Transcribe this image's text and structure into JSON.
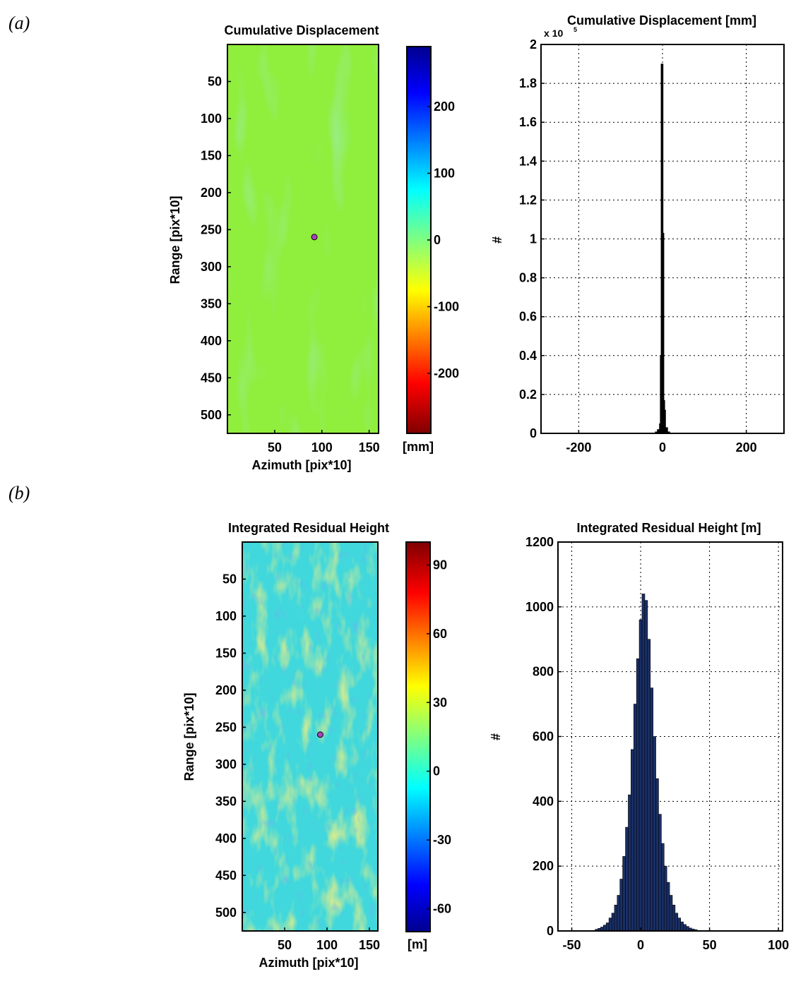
{
  "panels": {
    "a": "(a)",
    "b": "(b)"
  },
  "chart_data": [
    {
      "type": "heatmap",
      "title": "Cumulative Displacement",
      "xlabel": "Azimuth [pix*10]",
      "ylabel": "Range [pix*10]",
      "xticks": [
        50,
        100,
        150
      ],
      "yticks": [
        50,
        100,
        150,
        200,
        250,
        300,
        350,
        400,
        450,
        500
      ],
      "xlim": [
        0,
        160
      ],
      "ylim": [
        0,
        525
      ],
      "dominant_color": "#90ee3c",
      "marker": {
        "x": 92,
        "y": 260
      },
      "colorbar": {
        "label": "[mm]",
        "ticks": [
          200,
          100,
          0,
          -100,
          -200
        ],
        "range": [
          -290,
          290
        ],
        "colormap": "jet-reversed"
      }
    },
    {
      "type": "bar",
      "title": "Cumulative Displacement [mm]",
      "exponent_label": "x 10",
      "exponent_power": "5",
      "ylabel": "#",
      "xlabel": "",
      "xticks": [
        -200,
        0,
        200
      ],
      "yticks": [
        "0",
        "0.2",
        "0.4",
        "0.6",
        "0.8",
        "1",
        "1.2",
        "1.4",
        "1.6",
        "1.8",
        "2"
      ],
      "xlim": [
        -290,
        290
      ],
      "ylim": [
        0,
        2
      ],
      "grid": true,
      "bar_color": "#000000",
      "x": [
        -20,
        -15,
        -10,
        -5,
        -3,
        -1,
        1,
        3,
        5,
        10,
        15,
        20
      ],
      "values": [
        0.002,
        0.008,
        0.02,
        0.05,
        0.4,
        1.9,
        1.03,
        0.17,
        0.12,
        0.03,
        0.008,
        0.002
      ]
    },
    {
      "type": "heatmap",
      "title": "Integrated Residual Height",
      "xlabel": "Azimuth [pix*10]",
      "ylabel": "Range [pix*10]",
      "xticks": [
        50,
        100,
        150
      ],
      "yticks": [
        50,
        100,
        150,
        200,
        250,
        300,
        350,
        400,
        450,
        500
      ],
      "xlim": [
        0,
        160
      ],
      "ylim": [
        0,
        525
      ],
      "dominant_color": "#40d8dc",
      "marker": {
        "x": 92,
        "y": 260
      },
      "colorbar": {
        "label": "[m]",
        "ticks": [
          90,
          60,
          30,
          0,
          -30,
          -60
        ],
        "range": [
          -70,
          100
        ],
        "colormap": "jet"
      }
    },
    {
      "type": "bar",
      "title": "Integrated Residual Height [m]",
      "ylabel": "#",
      "xlabel": "",
      "xticks": [
        -50,
        0,
        50,
        100
      ],
      "yticks": [
        "0",
        "200",
        "400",
        "600",
        "800",
        "1000",
        "1200"
      ],
      "xlim": [
        -60,
        103
      ],
      "ylim": [
        0,
        1200
      ],
      "grid": true,
      "bar_color": "#1a2f66",
      "x": [
        -32,
        -30,
        -28,
        -26,
        -24,
        -22,
        -20,
        -18,
        -16,
        -14,
        -12,
        -10,
        -8,
        -6,
        -4,
        -2,
        0,
        2,
        4,
        6,
        8,
        10,
        12,
        14,
        16,
        18,
        20,
        22,
        24,
        26,
        28,
        30,
        32,
        34,
        36,
        38,
        40
      ],
      "values": [
        5,
        8,
        12,
        18,
        25,
        40,
        55,
        80,
        110,
        160,
        230,
        320,
        420,
        560,
        700,
        840,
        960,
        1040,
        1020,
        900,
        750,
        600,
        470,
        360,
        270,
        200,
        150,
        110,
        80,
        55,
        40,
        28,
        20,
        14,
        9,
        6,
        4
      ]
    }
  ]
}
